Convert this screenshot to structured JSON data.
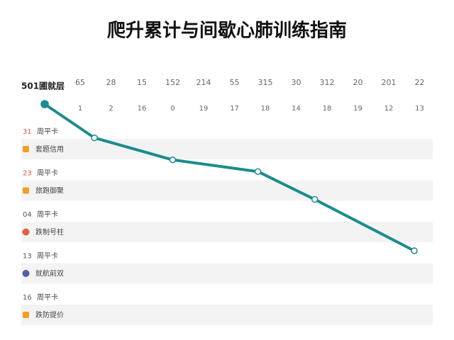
{
  "header": {
    "title": "爬升累计与间歇心肺训练指南",
    "row_label": "501圃就层"
  },
  "columns": {
    "top": [
      "65",
      "28",
      "15",
      "152",
      "214",
      "55",
      "315",
      "30",
      "312",
      "20",
      "201",
      "22"
    ],
    "bottom": [
      "1",
      "2",
      "16",
      "0",
      "19",
      "17",
      "18",
      "14",
      "18",
      "19",
      "12",
      "13"
    ]
  },
  "list": [
    {
      "num": "31",
      "num_color": "#d9534f",
      "label": "周平卡",
      "detail": "套题信用",
      "icon_color": "#f0a020"
    },
    {
      "num": "23",
      "num_color": "#d9534f",
      "label": "周平卡",
      "detail": "旅跑御聚",
      "icon_color": "#f0a020"
    },
    {
      "num": "04",
      "num_color": "#555555",
      "label": "周平卡",
      "detail": "跌制号柱",
      "icon_color": "#e06040"
    },
    {
      "num": "13",
      "num_color": "#555555",
      "label": "周平卡",
      "detail": "就航前双",
      "icon_color": "#5060a0"
    },
    {
      "num": "16",
      "num_color": "#555555",
      "label": "周平卡",
      "detail": "跌防提价",
      "icon_color": "#f0a020"
    }
  ],
  "chart_data": {
    "type": "line",
    "x": [
      0,
      7,
      18,
      30,
      38,
      52
    ],
    "xlim": [
      0,
      52
    ],
    "ylim": [
      0,
      100
    ],
    "series": [
      {
        "color": "#1a8c8c",
        "values": [
          100,
          77,
          62,
          54,
          35,
          0
        ]
      }
    ]
  }
}
